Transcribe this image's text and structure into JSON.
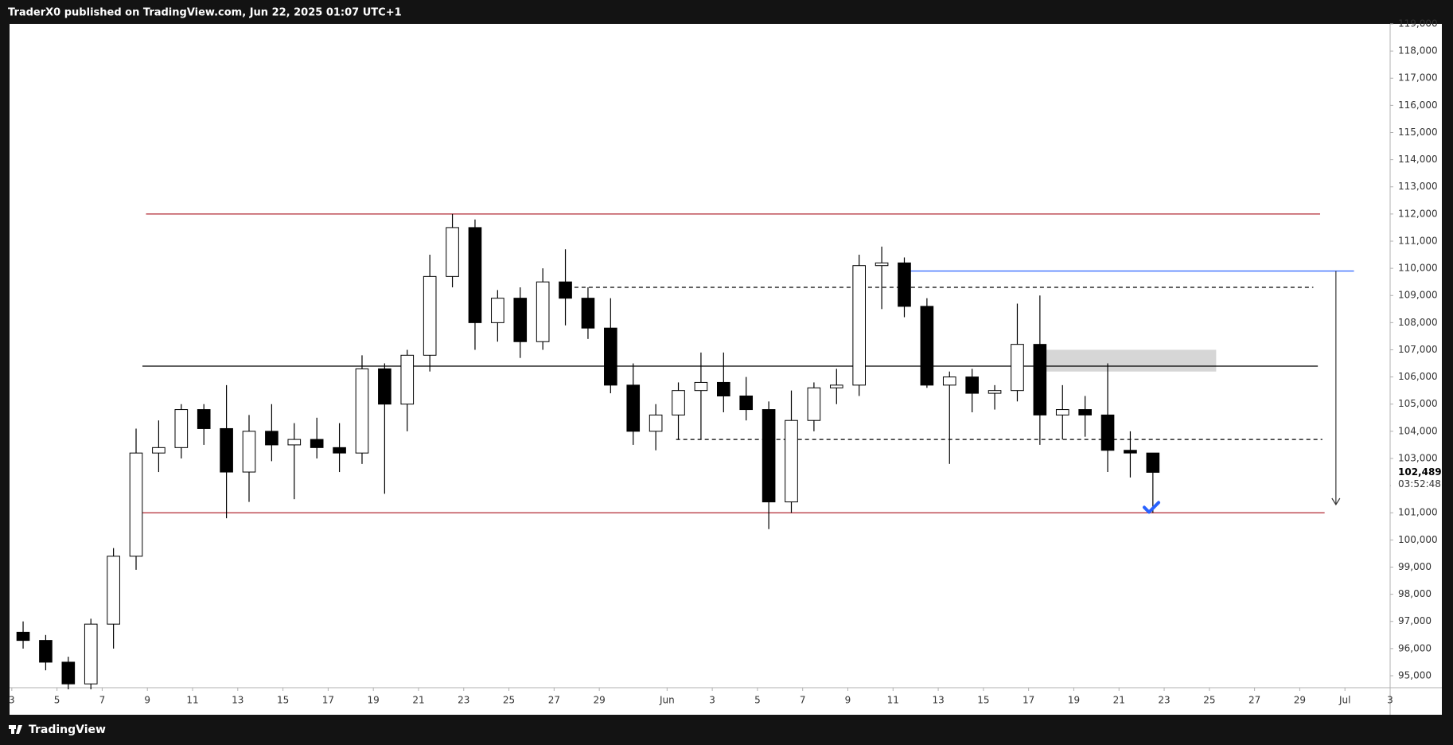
{
  "header": "TraderX0 published on TradingView.com, Jun 22, 2025 01:07 UTC+1",
  "footer": "TradingView",
  "chart_data": {
    "type": "candlestick",
    "x": [
      0.5,
      1.5,
      2.5,
      3.5,
      4.5,
      5.5,
      6.5,
      7.5,
      8.5,
      9.5,
      10.5,
      11.5,
      12.5,
      13.5,
      14.5,
      15.5,
      16.5,
      17.5,
      18.5,
      19.5,
      20.5,
      21.5,
      22.5,
      23.5,
      24.5,
      25.5,
      26.5,
      27.5,
      28.5,
      29.5,
      30.5,
      31.5,
      32.5,
      33.5,
      34.5,
      35.5,
      36.5,
      37.5,
      38.5,
      39.5,
      40.5,
      41.5,
      42.5,
      43.5,
      44.5,
      45.5,
      46.5,
      47.5,
      48.5,
      49.5,
      50.5
    ],
    "open": [
      96600,
      96300,
      95500,
      94700,
      96900,
      99400,
      103200,
      103400,
      104800,
      104100,
      102500,
      104000,
      103500,
      103700,
      103400,
      103200,
      106300,
      105000,
      106800,
      109700,
      111500,
      108000,
      108900,
      107300,
      109500,
      108900,
      107800,
      105700,
      104000,
      104600,
      105500,
      105800,
      105300,
      104800,
      101400,
      104400,
      105600,
      105700,
      110100,
      110200,
      108600,
      105700,
      106000,
      105400,
      105500,
      107200,
      104600,
      104800,
      104600,
      103300,
      103200
    ],
    "high": [
      97000,
      96500,
      95700,
      97100,
      99700,
      104100,
      104400,
      105000,
      105000,
      105700,
      104600,
      105000,
      104300,
      104500,
      104300,
      106800,
      106500,
      107000,
      110500,
      112000,
      111800,
      109200,
      109300,
      110000,
      110700,
      109300,
      108900,
      106500,
      105000,
      105800,
      106900,
      106900,
      106000,
      105100,
      105500,
      105800,
      106300,
      110500,
      110800,
      110400,
      108900,
      106200,
      106300,
      105700,
      108700,
      109000,
      105700,
      105300,
      106500,
      104000,
      103200
    ],
    "low": [
      96000,
      95200,
      94500,
      94500,
      96000,
      98900,
      102500,
      103000,
      103500,
      100800,
      101400,
      102900,
      101500,
      103000,
      102500,
      102800,
      101700,
      104000,
      106200,
      109300,
      107000,
      107300,
      106700,
      107000,
      107900,
      107400,
      105400,
      103500,
      103300,
      103700,
      103700,
      104700,
      104400,
      100400,
      101000,
      104000,
      105000,
      105300,
      108500,
      108200,
      105600,
      102800,
      104700,
      104800,
      105100,
      103500,
      103700,
      103800,
      102500,
      102300,
      101000
    ],
    "close": [
      96300,
      95500,
      94700,
      96900,
      99400,
      103200,
      103400,
      104800,
      104100,
      102500,
      104000,
      103500,
      103700,
      103400,
      103200,
      106300,
      105000,
      106800,
      109700,
      111500,
      108000,
      108900,
      107300,
      109500,
      108900,
      107800,
      105700,
      104000,
      104600,
      105500,
      105800,
      105300,
      104800,
      101400,
      104400,
      105600,
      105700,
      110100,
      110200,
      108600,
      105700,
      106000,
      105400,
      105500,
      107200,
      104600,
      104800,
      104600,
      103300,
      103200,
      102489
    ],
    "up_color": "#ffffff",
    "down_color": "#000000",
    "border_color": "#000000",
    "xlim": [
      -0.1,
      61
    ],
    "xticks": [
      {
        "value": 0,
        "label": "3"
      },
      {
        "value": 2,
        "label": "5"
      },
      {
        "value": 4,
        "label": "7"
      },
      {
        "value": 6,
        "label": "9"
      },
      {
        "value": 8,
        "label": "11"
      },
      {
        "value": 10,
        "label": "13"
      },
      {
        "value": 12,
        "label": "15"
      },
      {
        "value": 14,
        "label": "17"
      },
      {
        "value": 16,
        "label": "19"
      },
      {
        "value": 18,
        "label": "21"
      },
      {
        "value": 20,
        "label": "23"
      },
      {
        "value": 22,
        "label": "25"
      },
      {
        "value": 24,
        "label": "27"
      },
      {
        "value": 26,
        "label": "29"
      },
      {
        "value": 29,
        "label": "Jun"
      },
      {
        "value": 31,
        "label": "3"
      },
      {
        "value": 33,
        "label": "5"
      },
      {
        "value": 35,
        "label": "7"
      },
      {
        "value": 37,
        "label": "9"
      },
      {
        "value": 39,
        "label": "11"
      },
      {
        "value": 41,
        "label": "13"
      },
      {
        "value": 43,
        "label": "15"
      },
      {
        "value": 45,
        "label": "17"
      },
      {
        "value": 47,
        "label": "19"
      },
      {
        "value": 49,
        "label": "21"
      },
      {
        "value": 51,
        "label": "23"
      },
      {
        "value": 53,
        "label": "25"
      },
      {
        "value": 55,
        "label": "27"
      },
      {
        "value": 57,
        "label": "29"
      },
      {
        "value": 59,
        "label": "Jul"
      },
      {
        "value": 61,
        "label": "3"
      }
    ],
    "ylim": [
      94560,
      119000
    ],
    "yticks": [
      {
        "value": 95000,
        "label": "95,000"
      },
      {
        "value": 96000,
        "label": "96,000"
      },
      {
        "value": 97000,
        "label": "97,000"
      },
      {
        "value": 98000,
        "label": "98,000"
      },
      {
        "value": 99000,
        "label": "99,000"
      },
      {
        "value": 100000,
        "label": "100,000"
      },
      {
        "value": 101000,
        "label": "101,000"
      },
      {
        "value": 102000,
        "label": "102,000"
      },
      {
        "value": 103000,
        "label": "103,000"
      },
      {
        "value": 104000,
        "label": "104,000"
      },
      {
        "value": 105000,
        "label": "105,000"
      },
      {
        "value": 106000,
        "label": "106,000"
      },
      {
        "value": 107000,
        "label": "107,000"
      },
      {
        "value": 108000,
        "label": "108,000"
      },
      {
        "value": 109000,
        "label": "109,000"
      },
      {
        "value": 110000,
        "label": "110,000"
      },
      {
        "value": 111000,
        "label": "111,000"
      },
      {
        "value": 112000,
        "label": "112,000"
      },
      {
        "value": 113000,
        "label": "113,000"
      },
      {
        "value": 114000,
        "label": "114,000"
      },
      {
        "value": 115000,
        "label": "115,000"
      },
      {
        "value": 116000,
        "label": "116,000"
      },
      {
        "value": 117000,
        "label": "117,000"
      },
      {
        "value": 118000,
        "label": "118,000"
      },
      {
        "value": 119000,
        "label": "119,000"
      }
    ],
    "last_price": {
      "value": 102489,
      "label": "102,489"
    },
    "countdown": "03:52:48",
    "levels": [
      {
        "value": 112000,
        "color": "#b22833"
      },
      {
        "value": 101000,
        "color": "#b22833"
      },
      {
        "value": 106400,
        "color": "#000000"
      },
      {
        "value": 109300,
        "color": "#000000",
        "dashed": true
      },
      {
        "value": 103700,
        "color": "#000000",
        "dashed": true
      },
      {
        "value": 109900,
        "color": "#2962ff"
      }
    ],
    "zone": [
      106200,
      107000
    ],
    "arrow": [
      109900,
      101300
    ],
    "check": 101200
  }
}
